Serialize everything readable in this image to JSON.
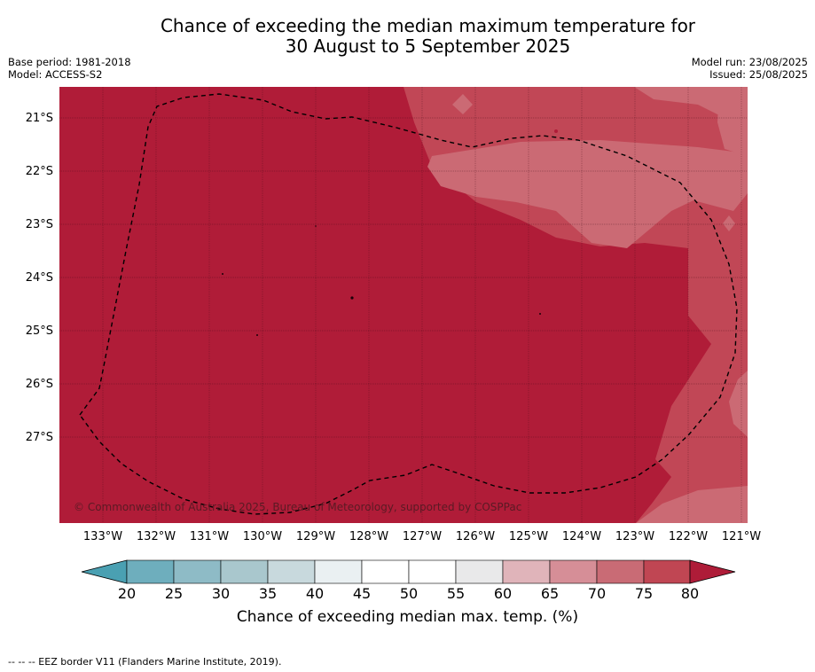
{
  "title": {
    "line1": "Chance of exceeding the median maximum temperature for",
    "line2": "30 August to 5 September 2025"
  },
  "meta_left": {
    "base_period": "Base period: 1981-2018",
    "model": "Model: ACCESS-S2"
  },
  "meta_right": {
    "model_run": "Model run: 23/08/2025",
    "issued": "Issued: 25/08/2025"
  },
  "map": {
    "lat_labels": [
      "21°S",
      "22°S",
      "23°S",
      "24°S",
      "25°S",
      "26°S",
      "27°S"
    ],
    "lon_labels": [
      "133°W",
      "132°W",
      "131°W",
      "130°W",
      "129°W",
      "128°W",
      "127°W",
      "126°W",
      "125°W",
      "124°W",
      "123°W",
      "122°W",
      "121°W"
    ],
    "copyright": "© Commonwealth of Australia 2025, Bureau of Meteorology, supported by COSPPac",
    "colors": {
      "above_80": "#b01c38",
      "75_80": "#c14756",
      "70_75": "#cb6a74",
      "eez_line": "#000000"
    }
  },
  "colorbar": {
    "ticks": [
      "20",
      "25",
      "30",
      "35",
      "40",
      "45",
      "50",
      "55",
      "60",
      "65",
      "70",
      "75",
      "80"
    ],
    "colors": [
      "#4aa0b2",
      "#6eaebd",
      "#8ebbc6",
      "#a9c7cd",
      "#c8d9dd",
      "#eaf0f2",
      "#ffffff",
      "#ffffff",
      "#e9e9ea",
      "#e0b4ba",
      "#d68e97",
      "#c96b75",
      "#c04653",
      "#ae1c38"
    ],
    "title": "Chance of exceeding median max. temp. (%)"
  },
  "footnote": "-- -- -- EEZ border V11 (Flanders Marine Institute, 2019)."
}
